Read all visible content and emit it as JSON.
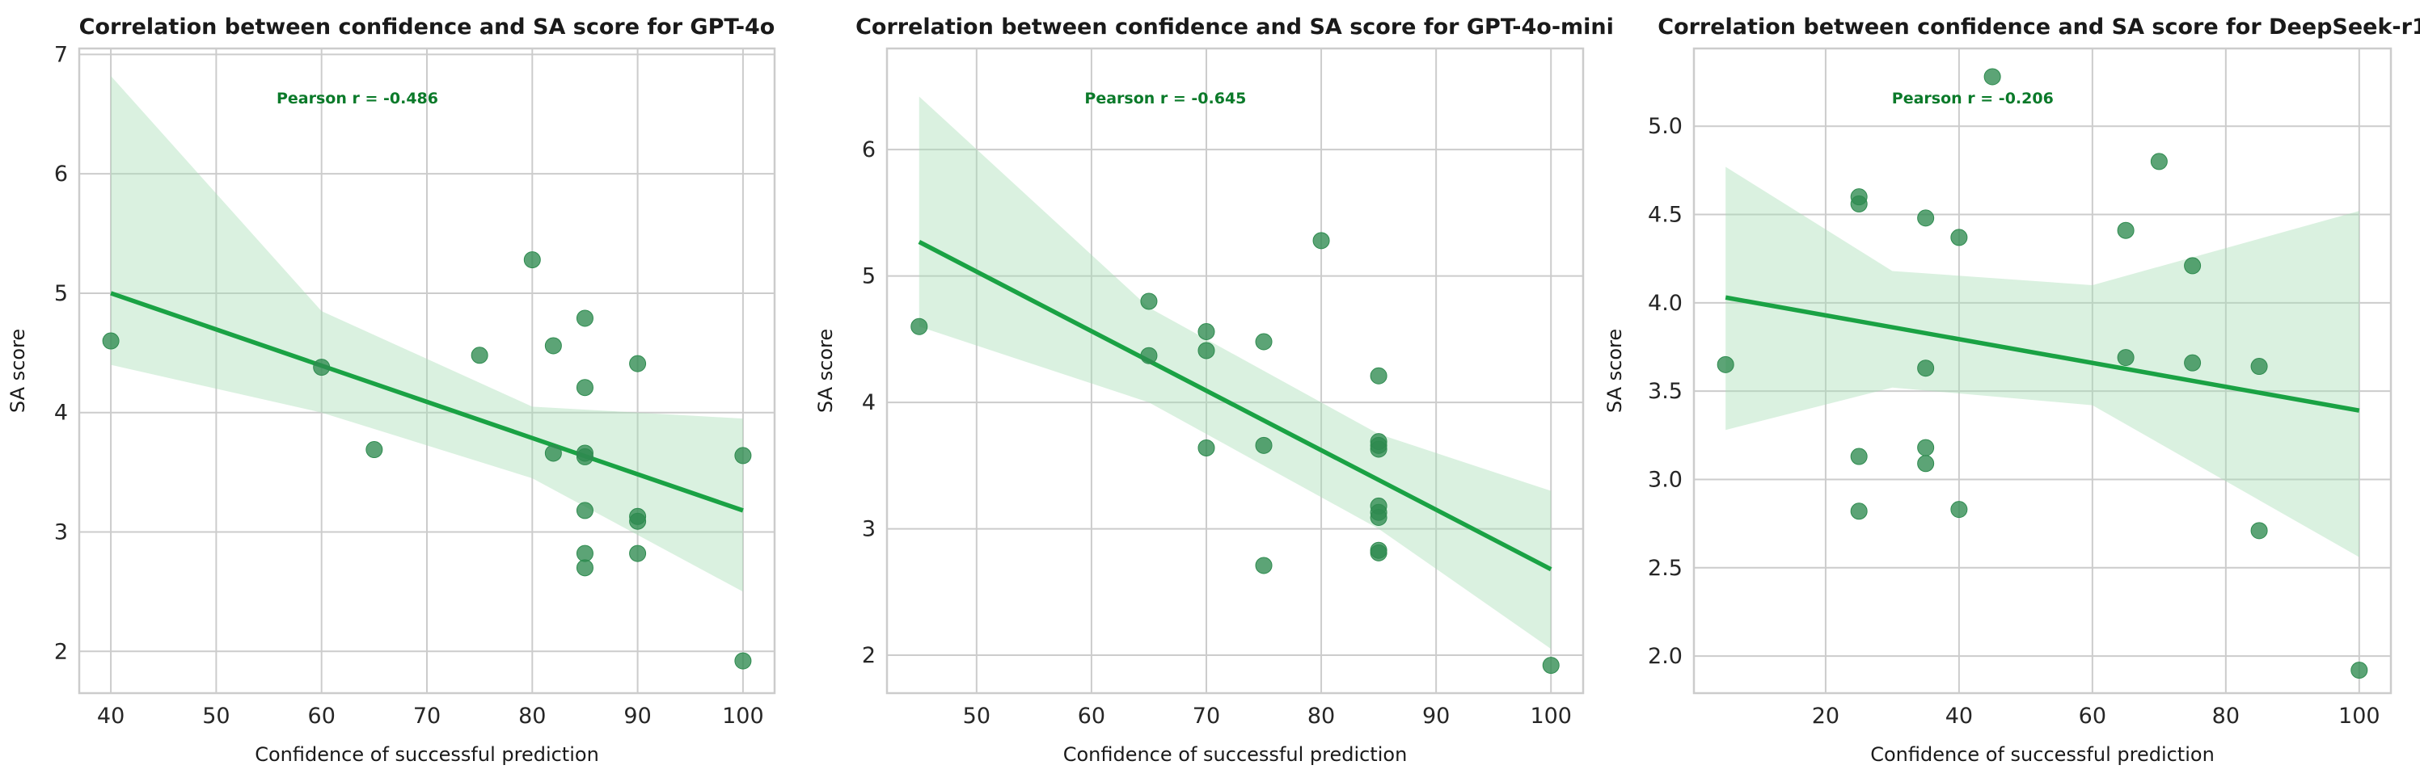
{
  "colors": {
    "points": "#2e8b4f",
    "line": "#1aa244",
    "band": "#a8ddb5",
    "annotation": "#0b7a2a"
  },
  "chart_data": [
    {
      "type": "scatter",
      "title": "Correlation between confidence and SA score for GPT-4o",
      "xlabel": "Confidence of successful prediction",
      "ylabel": "SA score",
      "xlim": [
        37,
        103
      ],
      "ylim": [
        1.65,
        7.05
      ],
      "xticks": [
        40,
        50,
        60,
        70,
        80,
        90,
        100
      ],
      "yticks": [
        2,
        3,
        4,
        5,
        6,
        7
      ],
      "ytick_labels": [
        "2",
        "3",
        "4",
        "5",
        "6",
        "7"
      ],
      "annotation": "Pearson r = -0.486",
      "points": [
        [
          40,
          4.6
        ],
        [
          60,
          4.38
        ],
        [
          65,
          3.69
        ],
        [
          75,
          4.48
        ],
        [
          80,
          5.28
        ],
        [
          82,
          4.56
        ],
        [
          82,
          3.66
        ],
        [
          85,
          4.79
        ],
        [
          85,
          4.21
        ],
        [
          85,
          3.66
        ],
        [
          85,
          3.63
        ],
        [
          85,
          3.18
        ],
        [
          85,
          2.82
        ],
        [
          85,
          2.7
        ],
        [
          90,
          4.41
        ],
        [
          90,
          3.13
        ],
        [
          90,
          3.09
        ],
        [
          90,
          2.82
        ],
        [
          100,
          3.64
        ],
        [
          100,
          1.92
        ]
      ],
      "regression": {
        "x": [
          40,
          100
        ],
        "y": [
          5.0,
          3.18
        ]
      },
      "ci_band": {
        "x": [
          40,
          60,
          80,
          100
        ],
        "lower": [
          4.4,
          4.0,
          3.45,
          2.5
        ],
        "upper": [
          6.82,
          4.85,
          4.05,
          3.95
        ]
      }
    },
    {
      "type": "scatter",
      "title": "Correlation between confidence and SA score for GPT-4o-mini",
      "xlabel": "Confidence of successful prediction",
      "ylabel": "SA score",
      "xlim": [
        42.2,
        102.8
      ],
      "ylim": [
        1.7,
        6.8
      ],
      "xticks": [
        50,
        60,
        70,
        80,
        90,
        100
      ],
      "yticks": [
        2,
        3,
        4,
        5,
        6
      ],
      "ytick_labels": [
        "2",
        "3",
        "4",
        "5",
        "6"
      ],
      "annotation": "Pearson r = -0.645",
      "points": [
        [
          45,
          4.6
        ],
        [
          65,
          4.8
        ],
        [
          65,
          4.37
        ],
        [
          70,
          4.56
        ],
        [
          70,
          4.41
        ],
        [
          70,
          3.64
        ],
        [
          75,
          4.48
        ],
        [
          75,
          3.66
        ],
        [
          75,
          2.71
        ],
        [
          80,
          5.28
        ],
        [
          85,
          4.21
        ],
        [
          85,
          3.69
        ],
        [
          85,
          3.66
        ],
        [
          85,
          3.63
        ],
        [
          85,
          3.18
        ],
        [
          85,
          3.13
        ],
        [
          85,
          3.09
        ],
        [
          85,
          2.83
        ],
        [
          85,
          2.81
        ],
        [
          100,
          1.92
        ]
      ],
      "regression": {
        "x": [
          45,
          100
        ],
        "y": [
          5.27,
          2.68
        ]
      },
      "ci_band": {
        "x": [
          45,
          65,
          85,
          100
        ],
        "lower": [
          4.6,
          4.0,
          3.0,
          2.05
        ],
        "upper": [
          6.42,
          4.75,
          3.75,
          3.3
        ]
      }
    },
    {
      "type": "scatter",
      "title": "Correlation between confidence and SA score for DeepSeek-r1",
      "xlabel": "Confidence of successful prediction",
      "ylabel": "SA score",
      "xlim": [
        0.25,
        104.75
      ],
      "ylim": [
        1.79,
        5.44
      ],
      "xticks": [
        20,
        40,
        60,
        80,
        100
      ],
      "yticks": [
        2.0,
        2.5,
        3.0,
        3.5,
        4.0,
        4.5,
        5.0
      ],
      "ytick_labels": [
        "2.0",
        "2.5",
        "3.0",
        "3.5",
        "4.0",
        "4.5",
        "5.0"
      ],
      "annotation": "Pearson r = -0.206",
      "points": [
        [
          5,
          3.65
        ],
        [
          25,
          4.6
        ],
        [
          25,
          4.56
        ],
        [
          25,
          3.13
        ],
        [
          25,
          2.82
        ],
        [
          35,
          4.48
        ],
        [
          35,
          3.63
        ],
        [
          35,
          3.18
        ],
        [
          35,
          3.09
        ],
        [
          40,
          4.37
        ],
        [
          40,
          2.83
        ],
        [
          45,
          5.28
        ],
        [
          65,
          4.41
        ],
        [
          65,
          3.69
        ],
        [
          70,
          4.8
        ],
        [
          75,
          4.21
        ],
        [
          75,
          3.66
        ],
        [
          85,
          3.64
        ],
        [
          85,
          2.71
        ],
        [
          100,
          1.92
        ]
      ],
      "regression": {
        "x": [
          5,
          100
        ],
        "y": [
          4.03,
          3.39
        ]
      },
      "ci_band": {
        "x": [
          5,
          30,
          60,
          100
        ],
        "lower": [
          3.28,
          3.52,
          3.42,
          2.56
        ],
        "upper": [
          4.77,
          4.18,
          4.1,
          4.52
        ]
      }
    }
  ]
}
